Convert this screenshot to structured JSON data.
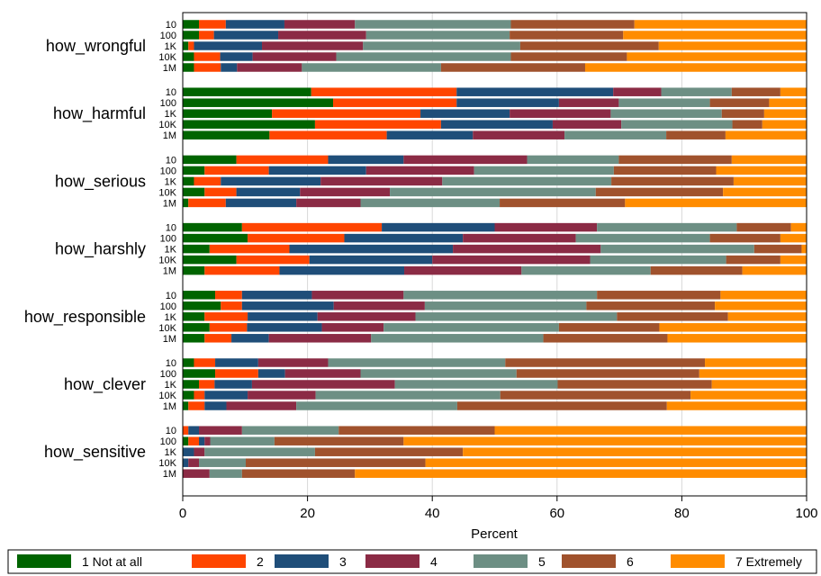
{
  "chart_data": {
    "type": "bar",
    "orientation": "horizontal",
    "stacked": true,
    "xlabel": "Percent",
    "xlim": [
      0,
      100
    ],
    "xticks": [
      0,
      20,
      40,
      60,
      80,
      100
    ],
    "grid": true,
    "legend_position": "bottom",
    "series": [
      {
        "name": "1 Not at all",
        "color": "#006400"
      },
      {
        "name": "2",
        "color": "#ff4500"
      },
      {
        "name": "3",
        "color": "#1f4e79"
      },
      {
        "name": "4",
        "color": "#8b2b45"
      },
      {
        "name": "5",
        "color": "#6d8f84"
      },
      {
        "name": "6",
        "color": "#a0522d"
      },
      {
        "name": "7 Extremely",
        "color": "#ff8c00"
      }
    ],
    "groups": [
      {
        "label": "how_wrongful",
        "bars": [
          {
            "label": "10",
            "values": [
              2.6,
              4.3,
              9.4,
              11.3,
              25.0,
              19.8,
              27.6
            ]
          },
          {
            "label": "100",
            "values": [
              2.6,
              2.4,
              10.3,
              14.1,
              23.0,
              18.2,
              29.4
            ]
          },
          {
            "label": "1K",
            "values": [
              0.9,
              0.9,
              10.9,
              16.2,
              25.2,
              22.2,
              23.7
            ]
          },
          {
            "label": "10K",
            "values": [
              1.8,
              4.2,
              5.2,
              13.4,
              28.0,
              18.6,
              28.8
            ]
          },
          {
            "label": "1M",
            "values": [
              1.8,
              4.3,
              2.6,
              10.4,
              22.3,
              23.1,
              35.5
            ]
          }
        ]
      },
      {
        "label": "how_harmful",
        "bars": [
          {
            "label": "10",
            "values": [
              20.6,
              23.3,
              25.1,
              7.7,
              11.3,
              7.8,
              4.2
            ]
          },
          {
            "label": "100",
            "values": [
              24.1,
              19.8,
              16.4,
              9.6,
              14.6,
              9.5,
              6.0
            ]
          },
          {
            "label": "1K",
            "values": [
              14.3,
              23.8,
              14.3,
              16.2,
              17.8,
              6.8,
              6.8
            ]
          },
          {
            "label": "10K",
            "values": [
              21.2,
              20.2,
              17.9,
              11.0,
              17.8,
              4.8,
              7.1
            ]
          },
          {
            "label": "1M",
            "values": [
              13.9,
              18.8,
              13.8,
              14.7,
              16.3,
              9.5,
              13.0
            ]
          }
        ]
      },
      {
        "label": "how_serious",
        "bars": [
          {
            "label": "10",
            "values": [
              8.6,
              14.7,
              12.1,
              19.8,
              14.7,
              18.1,
              12.0
            ]
          },
          {
            "label": "100",
            "values": [
              3.5,
              10.3,
              15.6,
              17.3,
              22.4,
              16.4,
              14.5
            ]
          },
          {
            "label": "1K",
            "values": [
              1.8,
              4.3,
              16.0,
              19.5,
              27.1,
              19.6,
              11.7
            ]
          },
          {
            "label": "10K",
            "values": [
              3.5,
              5.1,
              10.2,
              14.4,
              33.0,
              20.4,
              13.4
            ]
          },
          {
            "label": "1M",
            "values": [
              0.9,
              6.0,
              11.3,
              10.3,
              22.3,
              20.1,
              29.1
            ]
          }
        ]
      },
      {
        "label": "how_harshly",
        "bars": [
          {
            "label": "10",
            "values": [
              9.5,
              22.4,
              18.1,
              16.4,
              22.4,
              8.7,
              2.5
            ]
          },
          {
            "label": "100",
            "values": [
              10.4,
              15.5,
              19.0,
              18.1,
              21.5,
              11.3,
              4.2
            ]
          },
          {
            "label": "1K",
            "values": [
              4.3,
              12.8,
              26.2,
              23.7,
              24.6,
              7.6,
              0.8
            ]
          },
          {
            "label": "10K",
            "values": [
              8.6,
              11.7,
              19.7,
              25.3,
              21.8,
              8.7,
              4.2
            ]
          },
          {
            "label": "1M",
            "values": [
              3.5,
              12.0,
              20.0,
              18.8,
              20.7,
              14.7,
              10.3
            ]
          }
        ]
      },
      {
        "label": "how_responsible",
        "bars": [
          {
            "label": "10",
            "values": [
              5.2,
              4.3,
              11.2,
              14.7,
              31.0,
              19.8,
              13.8
            ]
          },
          {
            "label": "100",
            "values": [
              6.1,
              3.4,
              14.7,
              14.6,
              25.9,
              20.6,
              14.7
            ]
          },
          {
            "label": "1K",
            "values": [
              3.5,
              6.9,
              11.2,
              15.7,
              32.3,
              17.8,
              12.6
            ]
          },
          {
            "label": "10K",
            "values": [
              4.3,
              6.0,
              12.0,
              9.9,
              28.1,
              16.1,
              23.6
            ]
          },
          {
            "label": "1M",
            "values": [
              3.5,
              4.3,
              6.0,
              16.4,
              27.6,
              19.9,
              22.3
            ]
          }
        ]
      },
      {
        "label": "how_clever",
        "bars": [
          {
            "label": "10",
            "values": [
              1.8,
              3.4,
              6.9,
              11.2,
              28.4,
              32.0,
              16.3
            ]
          },
          {
            "label": "100",
            "values": [
              5.2,
              6.9,
              4.3,
              12.1,
              25.0,
              29.3,
              17.2
            ]
          },
          {
            "label": "1K",
            "values": [
              2.6,
              2.5,
              6.0,
              22.9,
              26.1,
              24.7,
              15.2
            ]
          },
          {
            "label": "10K",
            "values": [
              1.8,
              1.7,
              6.9,
              10.9,
              29.6,
              30.5,
              18.6
            ]
          },
          {
            "label": "1M",
            "values": [
              0.9,
              2.6,
              3.5,
              11.2,
              25.8,
              33.6,
              22.4
            ]
          }
        ]
      },
      {
        "label": "how_sensitive",
        "bars": [
          {
            "label": "10",
            "values": [
              0.0,
              0.9,
              1.7,
              6.9,
              15.5,
              25.0,
              50.0
            ]
          },
          {
            "label": "100",
            "values": [
              0.9,
              1.7,
              0.9,
              0.9,
              10.3,
              20.7,
              64.6
            ]
          },
          {
            "label": "1K",
            "values": [
              0.0,
              0.0,
              1.8,
              1.7,
              17.7,
              23.7,
              55.1
            ]
          },
          {
            "label": "10K",
            "values": [
              0.0,
              0.0,
              0.9,
              1.7,
              7.5,
              28.8,
              61.1
            ]
          },
          {
            "label": "1M",
            "values": [
              0.0,
              0.0,
              0.0,
              4.3,
              5.2,
              18.1,
              72.4
            ]
          }
        ]
      }
    ]
  }
}
